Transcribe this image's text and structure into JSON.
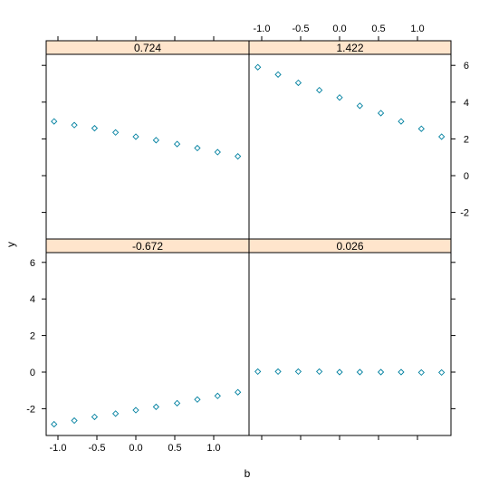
{
  "chart_data": {
    "type": "scatter",
    "layout": "2x2 lattice (trellis) panels",
    "xlabel": "b",
    "ylabel": "y",
    "x_ticks": [
      "-1.0",
      "-0.5",
      "0.0",
      "0.5",
      "1.0"
    ],
    "y_ticks": [
      "-2",
      "0",
      "2",
      "4",
      "6"
    ],
    "xlim": [
      -1.2,
      1.4
    ],
    "ylim": [
      -3.5,
      6.6
    ],
    "grid": false,
    "strip_color": "#FFE5CC",
    "point_color": "#0080A0",
    "marker": "open-diamond",
    "x": [
      -1.05,
      -0.79,
      -0.53,
      -0.26,
      0.0,
      0.26,
      0.53,
      0.79,
      1.05,
      1.31
    ],
    "panels": [
      {
        "position": "top-left",
        "strip": "0.724",
        "y": [
          2.95,
          2.75,
          2.58,
          2.35,
          2.12,
          1.93,
          1.72,
          1.5,
          1.28,
          1.05
        ]
      },
      {
        "position": "top-right",
        "strip": "1.422",
        "y": [
          5.9,
          5.5,
          5.05,
          4.65,
          4.25,
          3.8,
          3.4,
          2.95,
          2.55,
          2.12
        ]
      },
      {
        "position": "bottom-left",
        "strip": "-0.672",
        "y": [
          -2.85,
          -2.65,
          -2.45,
          -2.27,
          -2.08,
          -1.9,
          -1.7,
          -1.5,
          -1.3,
          -1.1
        ]
      },
      {
        "position": "bottom-right",
        "strip": "0.026",
        "y": [
          0.03,
          0.03,
          0.03,
          0.03,
          0.0,
          0.0,
          0.0,
          0.0,
          -0.02,
          -0.02
        ]
      }
    ]
  }
}
